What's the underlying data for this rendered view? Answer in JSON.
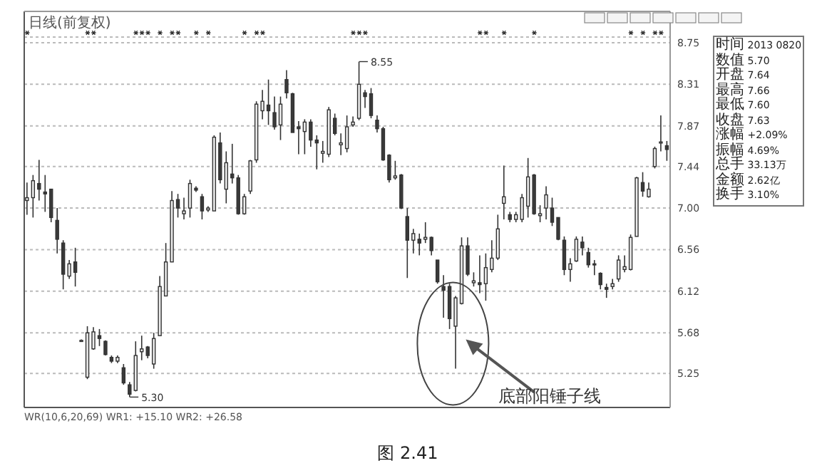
{
  "chart_data": {
    "type": "candlestick",
    "title": "日线(前复权)",
    "categories": [
      null,
      null,
      null,
      null,
      null,
      null,
      null,
      null,
      null,
      null,
      null,
      null,
      null,
      null,
      null,
      null,
      null,
      null,
      null,
      null,
      null,
      null,
      null,
      null,
      null,
      null,
      null,
      null,
      null,
      null,
      null,
      null,
      null,
      null,
      null,
      null,
      null,
      null,
      null,
      null,
      null,
      null,
      null,
      null,
      null,
      null,
      null,
      null,
      null,
      null,
      null,
      null,
      null,
      null,
      null,
      null,
      null,
      null,
      null,
      null,
      null,
      null,
      null,
      null,
      null,
      null,
      null,
      null,
      null,
      null,
      null,
      null,
      null,
      null,
      null,
      null,
      null,
      null,
      null,
      null,
      null,
      null,
      null,
      null,
      null,
      null,
      null,
      null,
      null,
      null,
      null,
      null,
      null,
      null,
      null,
      null,
      null,
      null,
      null,
      null,
      null,
      null,
      null,
      null,
      null,
      null,
      null
    ],
    "ohlc": [
      [
        7.08,
        7.27,
        6.93,
        7.11
      ],
      [
        7.11,
        7.35,
        6.9,
        7.29
      ],
      [
        7.26,
        7.51,
        7.08,
        7.2
      ],
      [
        7.17,
        7.35,
        6.96,
        7.15
      ],
      [
        7.2,
        7.2,
        6.85,
        6.9
      ],
      [
        6.87,
        7.0,
        6.52,
        6.67
      ],
      [
        6.63,
        6.66,
        6.14,
        6.3
      ],
      [
        6.28,
        6.45,
        6.25,
        6.41
      ],
      [
        6.43,
        6.58,
        6.17,
        6.32
      ],
      [
        5.6,
        5.61,
        5.59,
        5.6
      ],
      [
        5.21,
        5.75,
        5.19,
        5.68
      ],
      [
        5.51,
        5.74,
        5.5,
        5.69
      ],
      [
        5.65,
        5.72,
        5.54,
        5.62
      ],
      [
        5.59,
        5.6,
        5.44,
        5.45
      ],
      [
        5.42,
        5.44,
        5.36,
        5.38
      ],
      [
        5.38,
        5.44,
        5.36,
        5.42
      ],
      [
        5.31,
        5.35,
        5.13,
        5.15
      ],
      [
        5.13,
        5.16,
        5.0,
        5.03
      ],
      [
        5.07,
        5.59,
        5.06,
        5.44
      ],
      [
        5.48,
        5.65,
        5.39,
        5.51
      ],
      [
        5.53,
        5.54,
        5.41,
        5.44
      ],
      [
        5.35,
        5.68,
        5.3,
        5.62
      ],
      [
        5.65,
        6.28,
        5.65,
        6.17
      ],
      [
        6.07,
        6.63,
        6.07,
        6.43
      ],
      [
        6.43,
        7.18,
        6.43,
        7.08
      ],
      [
        7.09,
        7.15,
        6.9,
        7.0
      ],
      [
        6.94,
        7.11,
        6.88,
        6.97
      ],
      [
        7.0,
        7.3,
        6.9,
        7.26
      ],
      [
        7.21,
        7.23,
        7.17,
        7.19
      ],
      [
        7.12,
        7.15,
        6.88,
        6.97
      ],
      [
        6.98,
        7.02,
        6.96,
        7.0
      ],
      [
        6.97,
        7.77,
        6.97,
        7.75
      ],
      [
        7.69,
        7.8,
        7.26,
        7.3
      ],
      [
        7.2,
        7.6,
        7.05,
        7.48
      ],
      [
        7.36,
        7.68,
        7.26,
        7.32
      ],
      [
        7.32,
        7.35,
        6.93,
        6.94
      ],
      [
        6.94,
        7.15,
        6.93,
        7.12
      ],
      [
        7.18,
        7.51,
        7.15,
        7.5
      ],
      [
        7.51,
        8.13,
        7.48,
        8.1
      ],
      [
        8.03,
        8.25,
        7.94,
        8.13
      ],
      [
        8.09,
        8.36,
        7.88,
        8.03
      ],
      [
        8.01,
        8.18,
        7.83,
        7.86
      ],
      [
        7.88,
        8.18,
        7.72,
        8.1
      ],
      [
        8.36,
        8.46,
        8.16,
        8.22
      ],
      [
        8.21,
        8.22,
        7.8,
        7.8
      ],
      [
        7.86,
        7.92,
        7.57,
        7.84
      ],
      [
        7.81,
        7.94,
        7.57,
        7.91
      ],
      [
        7.91,
        7.94,
        7.65,
        7.72
      ],
      [
        7.72,
        7.77,
        7.41,
        7.69
      ],
      [
        7.58,
        7.71,
        7.48,
        7.6
      ],
      [
        7.57,
        8.07,
        7.54,
        8.04
      ],
      [
        7.95,
        8.0,
        7.77,
        7.79
      ],
      [
        7.67,
        7.79,
        7.56,
        7.69
      ],
      [
        7.63,
        7.98,
        7.59,
        7.86
      ],
      [
        7.88,
        7.97,
        7.86,
        7.91
      ],
      [
        7.95,
        8.55,
        7.93,
        8.31
      ],
      [
        8.22,
        8.25,
        8.06,
        8.18
      ],
      [
        8.21,
        8.27,
        7.95,
        7.98
      ],
      [
        7.93,
        7.98,
        7.8,
        7.84
      ],
      [
        7.84,
        7.86,
        7.5,
        7.51
      ],
      [
        7.56,
        7.57,
        7.27,
        7.3
      ],
      [
        7.32,
        7.5,
        7.3,
        7.34
      ],
      [
        7.35,
        7.36,
        6.99,
        7.0
      ],
      [
        6.91,
        7.0,
        6.26,
        6.66
      ],
      [
        6.66,
        6.78,
        6.52,
        6.73
      ],
      [
        6.67,
        6.73,
        6.5,
        6.63
      ],
      [
        6.67,
        6.85,
        6.63,
        6.69
      ],
      [
        6.69,
        6.7,
        6.5,
        6.55
      ],
      [
        6.45,
        6.45,
        6.2,
        6.22
      ],
      [
        6.17,
        6.29,
        5.84,
        6.13
      ],
      [
        6.17,
        6.2,
        5.72,
        5.83
      ],
      [
        5.75,
        6.07,
        5.3,
        6.05
      ],
      [
        5.99,
        6.69,
        5.98,
        6.6
      ],
      [
        6.6,
        6.69,
        6.28,
        6.3
      ],
      [
        6.21,
        6.32,
        6.17,
        6.23
      ],
      [
        6.21,
        6.5,
        6.1,
        6.19
      ],
      [
        6.2,
        6.52,
        6.02,
        6.37
      ],
      [
        6.35,
        6.66,
        6.32,
        6.47
      ],
      [
        6.47,
        6.93,
        6.45,
        6.78
      ],
      [
        7.05,
        7.45,
        6.88,
        7.12
      ],
      [
        6.93,
        6.96,
        6.85,
        6.88
      ],
      [
        6.88,
        6.96,
        6.85,
        6.93
      ],
      [
        6.88,
        7.15,
        6.85,
        7.11
      ],
      [
        7.02,
        7.53,
        6.9,
        7.33
      ],
      [
        7.35,
        7.36,
        6.93,
        6.94
      ],
      [
        6.92,
        7.03,
        6.85,
        6.94
      ],
      [
        7.0,
        7.23,
        6.88,
        7.14
      ],
      [
        7.0,
        7.11,
        6.81,
        6.85
      ],
      [
        6.9,
        6.9,
        6.66,
        6.67
      ],
      [
        6.66,
        6.7,
        6.29,
        6.35
      ],
      [
        6.35,
        6.47,
        6.22,
        6.41
      ],
      [
        6.44,
        6.7,
        6.43,
        6.67
      ],
      [
        6.64,
        6.7,
        6.5,
        6.58
      ],
      [
        6.53,
        6.58,
        6.37,
        6.4
      ],
      [
        6.41,
        6.45,
        6.29,
        6.4
      ],
      [
        6.31,
        6.32,
        6.14,
        6.19
      ],
      [
        6.16,
        6.2,
        6.05,
        6.14
      ],
      [
        6.17,
        6.25,
        6.14,
        6.2
      ],
      [
        6.25,
        6.5,
        6.22,
        6.45
      ],
      [
        6.35,
        6.5,
        6.32,
        6.38
      ],
      [
        6.35,
        6.72,
        6.34,
        6.69
      ],
      [
        6.7,
        7.33,
        6.7,
        7.32
      ],
      [
        7.27,
        7.38,
        7.12,
        7.18
      ],
      [
        7.12,
        7.27,
        7.11,
        7.2
      ],
      [
        7.44,
        7.65,
        7.42,
        7.63
      ],
      [
        7.69,
        7.98,
        7.6,
        7.7
      ],
      [
        7.66,
        7.71,
        7.5,
        7.62
      ]
    ],
    "ylim": [
      4.89,
      8.81
    ],
    "yticks": [
      8.75,
      8.31,
      7.87,
      7.44,
      {
        "value": 7,
        "label": "7.00"
      },
      6.56,
      6.12,
      5.68,
      5.25
    ],
    "grid": "y",
    "tick_labels": "y",
    "annotations": [
      "8.55",
      "5.30",
      "底部阳锤子线",
      "WR(10,6,20,69) WR1: +15.10 WR2: +26.58",
      "图 2.41",
      "时间",
      "2013 0820",
      "数值",
      "5.70",
      "开盘",
      "7.64",
      "最高",
      "7.66",
      "最低",
      "7.60",
      "收盘",
      "7.63",
      "涨幅",
      "+2.09%",
      "振幅",
      "4.69%",
      "总手",
      "33.13万",
      "金额",
      "2.62亿",
      "换手",
      "3.10%"
    ]
  }
}
